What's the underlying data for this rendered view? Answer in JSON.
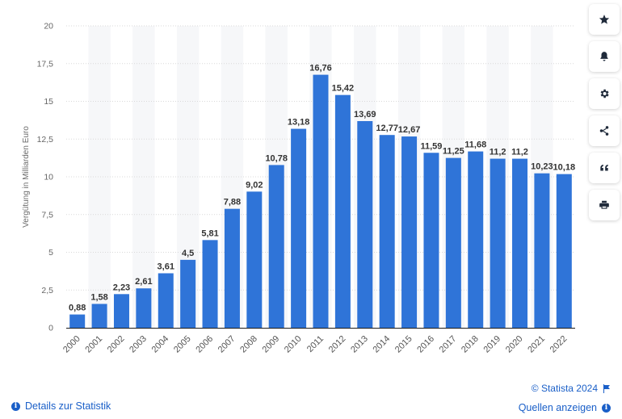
{
  "chart_data": {
    "type": "bar",
    "ylabel": "Vergütung in Milliarden Euro",
    "xlabel": "",
    "title": "",
    "ylim": [
      0,
      20
    ],
    "yticks": [
      0,
      2.5,
      5,
      7.5,
      10,
      12.5,
      15,
      17.5,
      20
    ],
    "ytick_labels": [
      "0",
      "2,5",
      "5",
      "7,5",
      "10",
      "12,5",
      "15",
      "17,5",
      "20"
    ],
    "grid": true,
    "bar_color": "#2f74d8",
    "categories": [
      "2000",
      "2001",
      "2002",
      "2003",
      "2004",
      "2005",
      "2006",
      "2007",
      "2008",
      "2009",
      "2010",
      "2011",
      "2012",
      "2013",
      "2014",
      "2015",
      "2016",
      "2017",
      "2018",
      "2019",
      "2020",
      "2021",
      "2022"
    ],
    "values": [
      0.88,
      1.58,
      2.23,
      2.61,
      3.61,
      4.5,
      5.81,
      7.88,
      9.02,
      10.78,
      13.18,
      16.76,
      15.42,
      13.69,
      12.77,
      12.67,
      11.59,
      11.25,
      11.68,
      11.2,
      11.2,
      10.23,
      10.18
    ],
    "value_labels": [
      "0,88",
      "1,58",
      "2,23",
      "2,61",
      "3,61",
      "4,5",
      "5,81",
      "7,88",
      "9,02",
      "10,78",
      "13,18",
      "16,76",
      "15,42",
      "13,69",
      "12,77",
      "12,67",
      "11,59",
      "11,25",
      "11,68",
      "11,2",
      "11,2",
      "10,23",
      "10,18"
    ]
  },
  "toolbar": {
    "icons": [
      "star-icon",
      "bell-icon",
      "gear-icon",
      "share-icon",
      "quote-icon",
      "print-icon"
    ]
  },
  "footer": {
    "copyright": "© Statista 2024",
    "details_label": "Details zur Statistik",
    "sources_label": "Quellen anzeigen"
  }
}
